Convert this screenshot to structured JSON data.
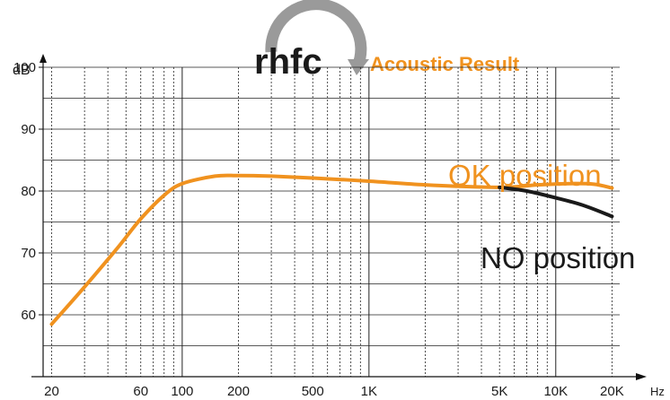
{
  "logo": {
    "text": "rhfc",
    "tagline": "Acoustic Result",
    "colors": {
      "text": "#1a1a1a",
      "arc": "#9a9a9a",
      "tagline": "#f0921f"
    }
  },
  "chart_data": {
    "type": "line",
    "xscale": "log",
    "xlim": [
      18,
      22000
    ],
    "ylim": [
      50,
      100
    ],
    "grid": true,
    "ylabel": "dB",
    "xlabel": "Hz",
    "y_ticks": [
      {
        "value": 60,
        "label": "60"
      },
      {
        "value": 70,
        "label": "70"
      },
      {
        "value": 80,
        "label": "80"
      },
      {
        "value": 90,
        "label": "90"
      },
      {
        "value": 100,
        "label": "100"
      }
    ],
    "x_ticks": [
      {
        "value": 20,
        "label": "20"
      },
      {
        "value": 60,
        "label": "60"
      },
      {
        "value": 100,
        "label": "100"
      },
      {
        "value": 200,
        "label": "200"
      },
      {
        "value": 500,
        "label": "500"
      },
      {
        "value": 1000,
        "label": "1K"
      },
      {
        "value": 5000,
        "label": "5K"
      },
      {
        "value": 10000,
        "label": "10K"
      },
      {
        "value": 20000,
        "label": "20K"
      }
    ],
    "series": [
      {
        "name": "OK position",
        "color": "#f0921f",
        "x": [
          20,
          30,
          45,
          60,
          80,
          100,
          150,
          200,
          300,
          500,
          1000,
          2000,
          5000,
          8000,
          12000,
          16000,
          20000
        ],
        "y": [
          58.5,
          64.5,
          70.8,
          75.5,
          79.3,
          81.2,
          82.4,
          82.5,
          82.4,
          82.1,
          81.6,
          81.0,
          80.6,
          81.0,
          81.2,
          81.1,
          80.5
        ]
      },
      {
        "name": "NO position",
        "color": "#1a1a1a",
        "x": [
          5000,
          7000,
          10000,
          14000,
          20000
        ],
        "y": [
          80.6,
          80.0,
          78.9,
          77.7,
          75.9
        ]
      }
    ]
  }
}
